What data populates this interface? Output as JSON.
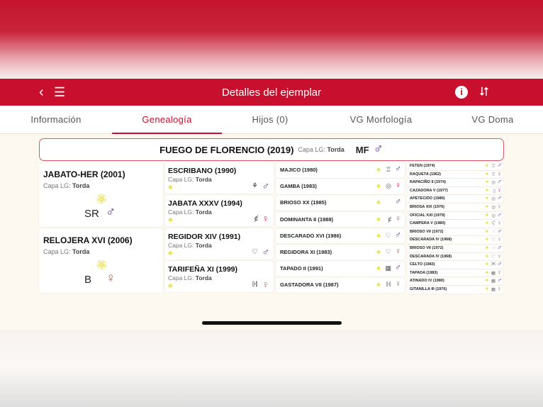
{
  "header": {
    "title": "Detalles del ejemplar",
    "back_icon": "chevron-left",
    "menu_icon": "hamburger",
    "info_icon": "info-circle",
    "share_icon": "share"
  },
  "tabs": [
    {
      "label": "Información"
    },
    {
      "label": "Genealogía",
      "active": true
    },
    {
      "label": "Hijos (0)"
    },
    {
      "label": "VG Morfología"
    },
    {
      "label": "VG Doma"
    }
  ],
  "colors": {
    "brand": "#c8102e",
    "male": "#5b2d90",
    "female": "#a0705a",
    "female_alt": "#e0245e",
    "award": "#e8e34a"
  },
  "root": {
    "name": "FUEGO DE FLORENCIO (2019)",
    "capa_label": "Capa LG:",
    "capa": "Torda",
    "brand": "MF",
    "sex": "male"
  },
  "parents": [
    {
      "name": "JABATO-HER (2001)",
      "capa_label": "Capa LG:",
      "capa": "Torda",
      "brand": "SR",
      "sex": "male"
    },
    {
      "name": "RELOJERA XVI (2006)",
      "capa_label": "Capa LG:",
      "capa": "Torda",
      "brand": "B",
      "sex": "female"
    }
  ],
  "grandparents": [
    {
      "name": "ESCRIBANO (1990)",
      "capa_label": "Capa LG:",
      "capa": "Torda",
      "brand": "⚘",
      "sex": "male"
    },
    {
      "name": "JABATA XXXV (1994)",
      "capa_label": "Capa LG:",
      "capa": "Torda",
      "brand": "ȼ",
      "sex": "female",
      "pink": true
    },
    {
      "name": "REGIDOR XIV (1991)",
      "capa_label": "Capa LG:",
      "capa": "Torda",
      "brand": "♡",
      "sex": "male"
    },
    {
      "name": "TARIFEÑA XI (1999)",
      "capa_label": "Capa LG:",
      "capa": "Torda",
      "brand": "ℍ",
      "sex": "female"
    }
  ],
  "great_grandparents": [
    {
      "name": "MAJICO (1980)",
      "brand": "♖",
      "sex": "male"
    },
    {
      "name": "GAMBA (1983)",
      "brand": "◎",
      "sex": "female",
      "pink": true
    },
    {
      "name": "BRIOSO XX (1985)",
      "brand": "",
      "sex": "male"
    },
    {
      "name": "DOMINANTA II (1988)",
      "brand": "ȼ",
      "sex": "female"
    },
    {
      "name": "DESCARADO XVI (1986)",
      "brand": "♡",
      "sex": "male"
    },
    {
      "name": "REGIDORA XI (1983)",
      "brand": "♡",
      "sex": "female"
    },
    {
      "name": "TAPADO II (1991)",
      "brand": "▦",
      "sex": "male"
    },
    {
      "name": "GASTADORA VII (1987)",
      "brand": "ℍ",
      "sex": "female"
    }
  ],
  "great_great_grandparents": [
    {
      "name": "FETEN (1974)",
      "brand": "♖",
      "sex": "male"
    },
    {
      "name": "RAQUETA (1962)",
      "brand": "♖",
      "sex": "female",
      "pink": true
    },
    {
      "name": "RAPACIÑO II (1974)",
      "brand": "◎",
      "sex": "male"
    },
    {
      "name": "CAZADORA V (1977)",
      "brand": "▯",
      "sex": "female",
      "pink": true
    },
    {
      "name": "APETECIDO (1980)",
      "brand": "◎",
      "sex": "male"
    },
    {
      "name": "BRIOSA XIX (1976)",
      "brand": "◎",
      "sex": "female"
    },
    {
      "name": "OFICIAL XXI (1979)",
      "brand": "◎",
      "sex": "male"
    },
    {
      "name": "CAMPERA V (1980)",
      "brand": "Ҁ",
      "sex": "female"
    },
    {
      "name": "BRIOSO VII (1972)",
      "brand": "◌",
      "sex": "male"
    },
    {
      "name": "DESCARADA IV (1968)",
      "brand": "♡",
      "sex": "female"
    },
    {
      "name": "BRIOSO VII (1972)",
      "brand": "◌",
      "sex": "male"
    },
    {
      "name": "DESCARADA IV (1968)",
      "brand": "♡",
      "sex": "female"
    },
    {
      "name": "CELTO (1983)",
      "brand": "Ж",
      "sex": "male"
    },
    {
      "name": "TAPADA (1983)",
      "brand": "▦",
      "sex": "female"
    },
    {
      "name": "ATINADO IV (1980)",
      "brand": "▦",
      "sex": "male"
    },
    {
      "name": "GITANILLA III (1976)",
      "brand": "▦",
      "sex": "female"
    }
  ]
}
